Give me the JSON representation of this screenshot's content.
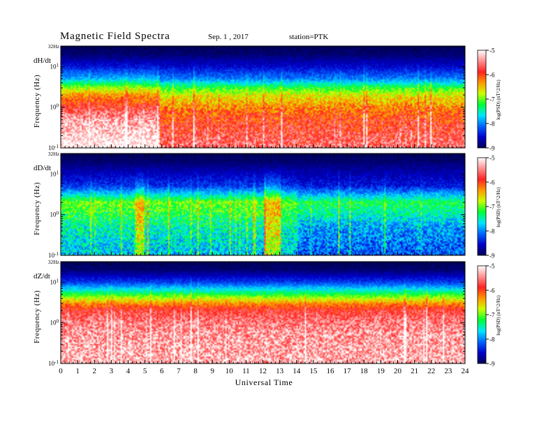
{
  "header": {
    "title": "Magnetic Field Spectra",
    "date": "Sep. 1 , 2017",
    "station": "station=PTK"
  },
  "chart_data": {
    "type": "heatmap",
    "xlabel": "Universal Time",
    "xlim": [
      0,
      24
    ],
    "x_ticks": [
      "0",
      "1",
      "2",
      "3",
      "4",
      "5",
      "6",
      "7",
      "8",
      "9",
      "10",
      "11",
      "12",
      "13",
      "14",
      "15",
      "16",
      "17",
      "18",
      "19",
      "20",
      "21",
      "22",
      "23",
      "24"
    ],
    "y_scale": "log",
    "ylim_hz": [
      0.1,
      32
    ],
    "colorbar": {
      "label": "log(PSD) (nT^2/Hz)",
      "range": [
        -9,
        -5
      ],
      "ticks": [
        "-5",
        "-6",
        "-7",
        "-8",
        "-9"
      ],
      "colormap": [
        "#000055",
        "#0000cc",
        "#0066ff",
        "#00e6ff",
        "#00ff33",
        "#ccff00",
        "#ff9900",
        "#ff2222",
        "#ff9090",
        "#ffffff"
      ]
    },
    "panels": [
      {
        "component": "dH/dt",
        "ylabel": "Frequency (Hz)",
        "top_freq_label": "32Hz",
        "y_ticks": [
          "10^1",
          "10^0",
          "10^-1"
        ],
        "spectrum_profile": {
          "freq_hz": [
            0.1,
            0.5,
            1,
            2,
            3,
            5,
            10,
            20,
            32
          ],
          "log_psd": [
            -5.2,
            -5.6,
            -6.0,
            -6.5,
            -7.0,
            -7.9,
            -8.5,
            -8.9,
            -9.0
          ]
        }
      },
      {
        "component": "dD/dt",
        "ylabel": "Frequency (Hz)",
        "top_freq_label": "32Hz",
        "y_ticks": [
          "10^1",
          "10^0",
          "10^-1"
        ],
        "spectrum_profile": {
          "freq_hz": [
            0.1,
            0.5,
            1,
            2,
            3,
            5,
            10,
            20,
            32
          ],
          "log_psd": [
            -7.8,
            -7.5,
            -7.2,
            -7.0,
            -7.6,
            -8.3,
            -8.6,
            -8.9,
            -9.0
          ]
        }
      },
      {
        "component": "dZ/dt",
        "ylabel": "Frequency (Hz)",
        "top_freq_label": "32Hz",
        "y_ticks": [
          "10^1",
          "10^0",
          "10^-1"
        ],
        "spectrum_profile": {
          "freq_hz": [
            0.1,
            0.5,
            1,
            2,
            3,
            5,
            10,
            20,
            32
          ],
          "log_psd": [
            -5.3,
            -5.4,
            -5.5,
            -5.8,
            -6.3,
            -7.2,
            -8.3,
            -8.9,
            -9.0
          ]
        }
      }
    ]
  }
}
